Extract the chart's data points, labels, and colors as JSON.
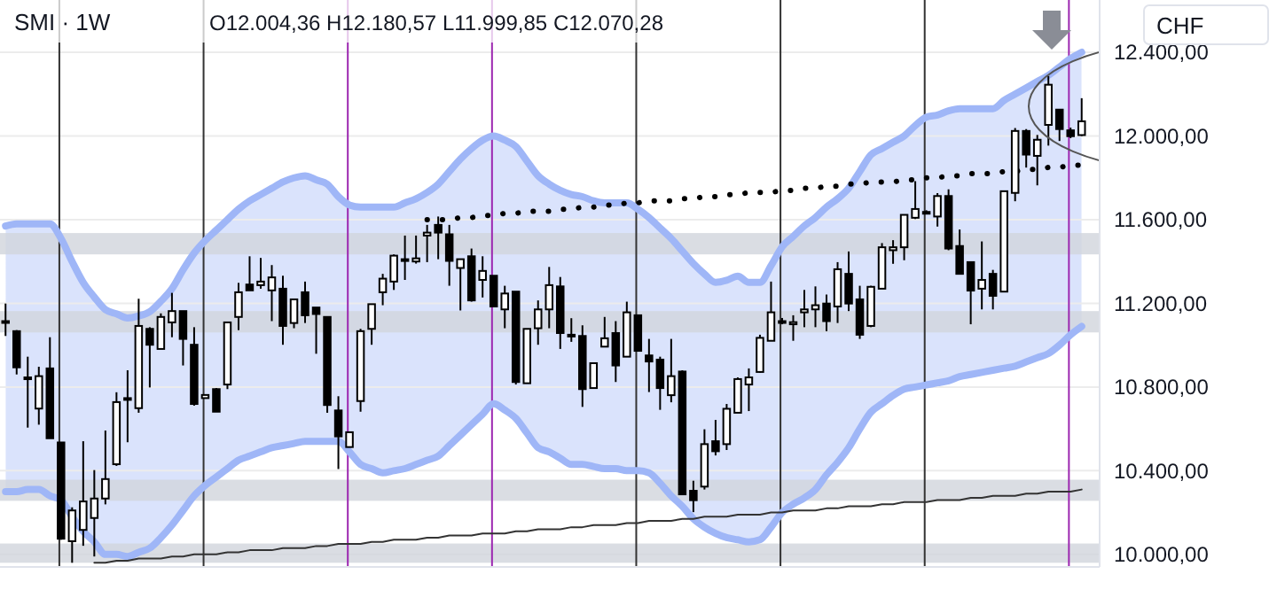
{
  "chart_data": {
    "type": "candlestick",
    "title": "SMI · 1W",
    "subtitle": "O12.004,36 H12.180,57 L11.999,85 C12.070,28",
    "annotations": [
      "CHF"
    ],
    "categories": [
      null,
      null,
      null,
      null,
      null,
      null,
      null,
      null,
      null,
      null,
      null,
      null,
      null,
      null,
      null,
      null,
      null,
      null,
      null,
      null,
      null,
      null,
      null,
      null,
      null,
      null,
      null,
      null,
      null,
      null,
      null,
      null,
      null,
      null,
      null,
      null,
      null,
      null,
      null,
      null,
      null,
      null,
      null,
      null,
      null,
      null,
      null,
      null,
      null,
      null,
      null,
      null,
      null,
      null,
      null,
      null,
      null,
      null,
      null,
      null,
      null,
      null,
      null,
      null,
      null,
      null,
      null,
      null,
      null,
      null,
      null,
      null,
      null,
      null,
      null,
      null,
      null,
      null,
      null,
      null,
      null,
      null,
      null,
      null,
      null,
      null,
      null,
      null,
      null,
      null,
      null,
      null,
      null,
      null,
      null,
      null,
      null,
      null
    ],
    "ohlc": [
      [
        11115,
        11199,
        11044,
        11115
      ],
      [
        11067,
        11072,
        10860,
        10894
      ],
      [
        10846,
        10945,
        10606,
        10846
      ],
      [
        10697,
        10897,
        10620,
        10852
      ],
      [
        10889,
        11038,
        10555,
        10555
      ],
      [
        10535,
        10535,
        10070,
        10075
      ],
      [
        10063,
        10225,
        9960,
        10210
      ],
      [
        10117,
        10541,
        10041,
        10253
      ],
      [
        10174,
        10403,
        9990,
        10267
      ],
      [
        10267,
        10592,
        10239,
        10360
      ],
      [
        10431,
        10775,
        10423,
        10728
      ],
      [
        10747,
        10880,
        10536,
        10747
      ],
      [
        10699,
        11222,
        10677,
        11092
      ],
      [
        11078,
        11086,
        10798,
        11002
      ],
      [
        10982,
        11152,
        10982,
        11135
      ],
      [
        11109,
        11250,
        11038,
        11163
      ],
      [
        11163,
        11163,
        10903,
        11030
      ],
      [
        11002,
        11086,
        10711,
        10719
      ],
      [
        10747,
        10765,
        10745,
        10762
      ],
      [
        10790,
        10795,
        10682,
        10682
      ],
      [
        10812,
        11109,
        10790,
        11109
      ],
      [
        11135,
        11298,
        11072,
        11253
      ],
      [
        11290,
        11425,
        11262,
        11262
      ],
      [
        11287,
        11417,
        11270,
        11304
      ],
      [
        11262,
        11383,
        11115,
        11324
      ],
      [
        11270,
        11332,
        11002,
        11092
      ],
      [
        11106,
        11219,
        11081,
        11219
      ],
      [
        11253,
        11304,
        11106,
        11143
      ],
      [
        11180,
        11180,
        10959,
        11149
      ],
      [
        11135,
        11135,
        10677,
        10714
      ],
      [
        10688,
        10756,
        10408,
        10564
      ],
      [
        10513,
        10584,
        10513,
        10584
      ],
      [
        10733,
        11078,
        10682,
        11067
      ],
      [
        11078,
        11196,
        11002,
        11196
      ],
      [
        11253,
        11341,
        11191,
        11318
      ],
      [
        11304,
        11434,
        11264,
        11428
      ],
      [
        11411,
        11524,
        11312,
        11411
      ],
      [
        11400,
        11524,
        11390,
        11415
      ],
      [
        11524,
        11575,
        11397,
        11538
      ],
      [
        11575,
        11615,
        11411,
        11538
      ],
      [
        11530,
        11575,
        11284,
        11403
      ],
      [
        11369,
        11411,
        11166,
        11411
      ],
      [
        11425,
        11462,
        11208,
        11214
      ],
      [
        11312,
        11425,
        11228,
        11355
      ],
      [
        11332,
        11332,
        11185,
        11185
      ],
      [
        11171,
        11284,
        11081,
        11247
      ],
      [
        11256,
        11256,
        10812,
        10824
      ],
      [
        10818,
        11078,
        10818,
        11078
      ],
      [
        11081,
        11214,
        11002,
        11171
      ],
      [
        11171,
        11374,
        11081,
        11287
      ],
      [
        11281,
        11326,
        10982,
        11058
      ],
      [
        11050,
        11129,
        11016,
        11050
      ],
      [
        11044,
        11095,
        10705,
        10790
      ],
      [
        10795,
        10914,
        10795,
        10914
      ],
      [
        10993,
        11135,
        10993,
        11033
      ],
      [
        11058,
        11115,
        10824,
        10903
      ],
      [
        10945,
        11208,
        10945,
        11157
      ],
      [
        11143,
        11143,
        10973,
        10973
      ],
      [
        10951,
        11030,
        10776,
        10922
      ],
      [
        10931,
        10945,
        10691,
        10795
      ],
      [
        10761,
        11030,
        10727,
        10852
      ],
      [
        10874,
        10880,
        10287,
        10287
      ],
      [
        10304,
        10352,
        10202,
        10259
      ],
      [
        10324,
        10598,
        10310,
        10527
      ],
      [
        10541,
        10643,
        10473,
        10493
      ],
      [
        10527,
        10719,
        10499,
        10696
      ],
      [
        10677,
        10846,
        10677,
        10838
      ],
      [
        10812,
        10889,
        10685,
        10846
      ],
      [
        10872,
        11050,
        10869,
        11035
      ],
      [
        11021,
        11304,
        11021,
        11157
      ],
      [
        11115,
        11130,
        11100,
        11115
      ],
      [
        11100,
        11143,
        11021,
        11110
      ],
      [
        11157,
        11264,
        11086,
        11171
      ],
      [
        11171,
        11281,
        11086,
        11191
      ],
      [
        11199,
        11242,
        11067,
        11115
      ],
      [
        11185,
        11397,
        11106,
        11363
      ],
      [
        11341,
        11448,
        11163,
        11199
      ],
      [
        11219,
        11284,
        11030,
        11050
      ],
      [
        11092,
        11284,
        11086,
        11279
      ],
      [
        11270,
        11488,
        11270,
        11468
      ],
      [
        11454,
        11502,
        11389,
        11468
      ],
      [
        11468,
        11623,
        11406,
        11623
      ],
      [
        11609,
        11784,
        11603,
        11651
      ],
      [
        11637,
        11645,
        11630,
        11637
      ],
      [
        11615,
        11727,
        11567,
        11713
      ],
      [
        11713,
        11745,
        11454,
        11462
      ],
      [
        11474,
        11553,
        11341,
        11341
      ],
      [
        11397,
        11397,
        11100,
        11261
      ],
      [
        11270,
        11496,
        11171,
        11312
      ],
      [
        11341,
        11360,
        11171,
        11236
      ],
      [
        11256,
        11736,
        11256,
        11736
      ],
      [
        11728,
        12038,
        11688,
        12024
      ],
      [
        12024,
        12033,
        11849,
        11911
      ],
      [
        11905,
        12005,
        11764,
        11982
      ],
      [
        12053,
        12287,
        11954,
        12245
      ],
      [
        12126,
        12126,
        11976,
        12033
      ],
      [
        12027,
        12040,
        11990,
        11999
      ],
      [
        12004.36,
        12180.57,
        11999.85,
        12070.28
      ]
    ],
    "series": [
      {
        "type": "area",
        "color": "#9fb6f7",
        "line_style": "solid",
        "values": [
          11570,
          11580,
          11580,
          11580,
          11580,
          11510,
          11400,
          11300,
          11230,
          11170,
          11150,
          11130,
          11140,
          11160,
          11210,
          11270,
          11360,
          11440,
          11500,
          11550,
          11600,
          11650,
          11690,
          11720,
          11750,
          11780,
          11800,
          11810,
          11790,
          11770,
          11710,
          11670,
          11660,
          11660,
          11660,
          11660,
          11680,
          11700,
          11730,
          11770,
          11830,
          11890,
          11940,
          11980,
          12000,
          11980,
          11950,
          11880,
          11810,
          11770,
          11740,
          11720,
          11710,
          11690,
          11680,
          11680,
          11680,
          11650,
          11610,
          11560,
          11510,
          11450,
          11390,
          11340,
          11300,
          11310,
          11330,
          11300,
          11300,
          11380,
          11470,
          11520,
          11570,
          11610,
          11660,
          11700,
          11750,
          11830,
          11910,
          11940,
          11970,
          12000,
          12050,
          12090,
          12100,
          12120,
          12130,
          12130,
          12130,
          12130,
          12170,
          12200,
          12230,
          12260,
          12290,
          12330,
          12370,
          12400
        ]
      },
      {
        "type": "line",
        "color": "#9fb6f7",
        "line_style": "solid",
        "values": [
          10300,
          10300,
          10310,
          10310,
          10280,
          10260,
          10180,
          10110,
          10060,
          10000,
          10000,
          9990,
          10010,
          10030,
          10080,
          10140,
          10210,
          10280,
          10330,
          10370,
          10410,
          10450,
          10470,
          10490,
          10510,
          10520,
          10530,
          10540,
          10540,
          10540,
          10540,
          10490,
          10430,
          10410,
          10390,
          10400,
          10410,
          10430,
          10450,
          10470,
          10520,
          10570,
          10620,
          10670,
          10720,
          10690,
          10650,
          10580,
          10510,
          10490,
          10460,
          10430,
          10430,
          10420,
          10410,
          10410,
          10400,
          10400,
          10390,
          10340,
          10280,
          10230,
          10170,
          10130,
          10100,
          10080,
          10070,
          10060,
          10070,
          10130,
          10200,
          10240,
          10270,
          10310,
          10380,
          10440,
          10510,
          10600,
          10680,
          10720,
          10760,
          10790,
          10800,
          10810,
          10820,
          10830,
          10850,
          10860,
          10870,
          10880,
          10890,
          10900,
          10920,
          10940,
          10960,
          11000,
          11050,
          11090
        ]
      },
      {
        "type": "line",
        "color": "#000000",
        "line_style": "dotted",
        "values": [
          null,
          null,
          null,
          null,
          null,
          null,
          null,
          null,
          null,
          null,
          null,
          null,
          null,
          null,
          null,
          null,
          null,
          null,
          null,
          null,
          null,
          null,
          null,
          null,
          null,
          null,
          null,
          null,
          null,
          null,
          null,
          null,
          null,
          null,
          null,
          null,
          null,
          null,
          11600,
          11600,
          11600,
          11610,
          11610,
          11620,
          11620,
          11630,
          11630,
          11640,
          11640,
          11640,
          11650,
          11650,
          11660,
          11660,
          11670,
          11670,
          11680,
          11680,
          11690,
          11690,
          11690,
          11700,
          11700,
          11710,
          11710,
          11720,
          11720,
          11730,
          11730,
          11730,
          11740,
          11740,
          11750,
          11750,
          11760,
          11760,
          11770,
          11770,
          11780,
          11780,
          11780,
          11790,
          11790,
          11800,
          11800,
          11810,
          11810,
          11820,
          11820,
          11820,
          11830,
          11830,
          11840,
          11840,
          11850,
          11850,
          11860,
          11860
        ]
      },
      {
        "type": "line",
        "color": "#333333",
        "line_style": "solid",
        "values": [
          null,
          null,
          null,
          null,
          null,
          null,
          null,
          null,
          9960,
          9960,
          9970,
          9970,
          9980,
          9980,
          9980,
          9990,
          9990,
          10000,
          10000,
          10000,
          10010,
          10010,
          10020,
          10020,
          10020,
          10030,
          10030,
          10030,
          10040,
          10040,
          10050,
          10050,
          10050,
          10060,
          10060,
          10070,
          10070,
          10070,
          10080,
          10080,
          10090,
          10090,
          10090,
          10100,
          10100,
          10100,
          10110,
          10110,
          10120,
          10120,
          10120,
          10130,
          10130,
          10140,
          10140,
          10140,
          10150,
          10150,
          10160,
          10160,
          10160,
          10170,
          10170,
          10180,
          10180,
          10180,
          10190,
          10190,
          10190,
          10200,
          10200,
          10210,
          10210,
          10210,
          10220,
          10220,
          10230,
          10230,
          10230,
          10240,
          10240,
          10250,
          10250,
          10250,
          10260,
          10260,
          10260,
          10270,
          10270,
          10280,
          10280,
          10280,
          10290,
          10290,
          10300,
          10300,
          10300,
          10310
        ]
      }
    ],
    "bands": [
      {
        "axis": "y",
        "from": 9960,
        "to": 10052,
        "color": "#d1d4dc"
      },
      {
        "axis": "y",
        "from": 10256,
        "to": 10357,
        "color": "#d1d4dc"
      },
      {
        "axis": "y",
        "from": 11434,
        "to": 11536,
        "color": "#d1d4dc"
      },
      {
        "axis": "y",
        "from": 11061,
        "to": 11163,
        "color": "#d1d4dc"
      }
    ],
    "ylim": [
      9940,
      12650
    ],
    "yticks": [
      {
        "value": 10000,
        "label": "10.000,00"
      },
      {
        "value": 10400,
        "label": "10.400,00"
      },
      {
        "value": 10800,
        "label": "10.800,00"
      },
      {
        "value": 11200,
        "label": "11.200,00"
      },
      {
        "value": 11600,
        "label": "11.600,00"
      },
      {
        "value": 12000,
        "label": "12.000,00"
      },
      {
        "value": 12400,
        "label": "12.400,00"
      }
    ],
    "grid": "y",
    "tick_labels": "y"
  }
}
